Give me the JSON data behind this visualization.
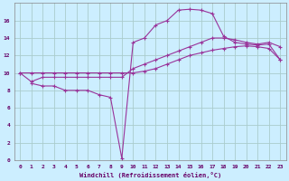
{
  "background_color": "#cceeff",
  "grid_color": "#aacccc",
  "line_color": "#993399",
  "xlabel": "Windchill (Refroidissement éolien,°C)",
  "xlabel_color": "#660066",
  "tick_color": "#660066",
  "line1_x": [
    0,
    1,
    2,
    3,
    4,
    5,
    6,
    7,
    8,
    9,
    10,
    11,
    12,
    13,
    14,
    15,
    16,
    17,
    18,
    19,
    20,
    21,
    22,
    23
  ],
  "line1_y": [
    10.0,
    10.0,
    10.0,
    10.0,
    10.0,
    10.0,
    10.0,
    10.0,
    10.0,
    10.0,
    10.0,
    10.2,
    10.5,
    11.0,
    11.5,
    12.0,
    12.3,
    12.6,
    12.8,
    13.0,
    13.1,
    13.0,
    12.8,
    11.5
  ],
  "line2_x": [
    0,
    1,
    2,
    3,
    4,
    5,
    6,
    7,
    8,
    9,
    10,
    11,
    12,
    13,
    14,
    15,
    16,
    17,
    18,
    19,
    20,
    21,
    22,
    23
  ],
  "line2_y": [
    10.0,
    9.0,
    9.5,
    9.5,
    9.5,
    9.5,
    9.5,
    9.5,
    9.5,
    9.5,
    10.5,
    11.0,
    11.5,
    12.0,
    12.5,
    13.0,
    13.5,
    14.0,
    14.0,
    13.8,
    13.5,
    13.3,
    13.5,
    13.0
  ],
  "line3_x": [
    1,
    2,
    3,
    4,
    5,
    6,
    7,
    8,
    9,
    10,
    11,
    12,
    13,
    14,
    15,
    16,
    17,
    18,
    19,
    20,
    21,
    22,
    23
  ],
  "line3_y": [
    8.8,
    8.5,
    8.5,
    8.0,
    8.0,
    8.0,
    7.5,
    7.2,
    0.2,
    13.5,
    14.0,
    15.5,
    16.0,
    17.2,
    17.3,
    17.2,
    16.8,
    14.2,
    13.5,
    13.3,
    13.2,
    13.3,
    11.5
  ],
  "xlim": [
    -0.5,
    23.5
  ],
  "ylim": [
    0,
    18
  ],
  "yticks": [
    0,
    2,
    4,
    6,
    8,
    10,
    12,
    14,
    16
  ],
  "xticks": [
    0,
    1,
    2,
    3,
    4,
    5,
    6,
    7,
    8,
    9,
    10,
    11,
    12,
    13,
    14,
    15,
    16,
    17,
    18,
    19,
    20,
    21,
    22,
    23
  ]
}
